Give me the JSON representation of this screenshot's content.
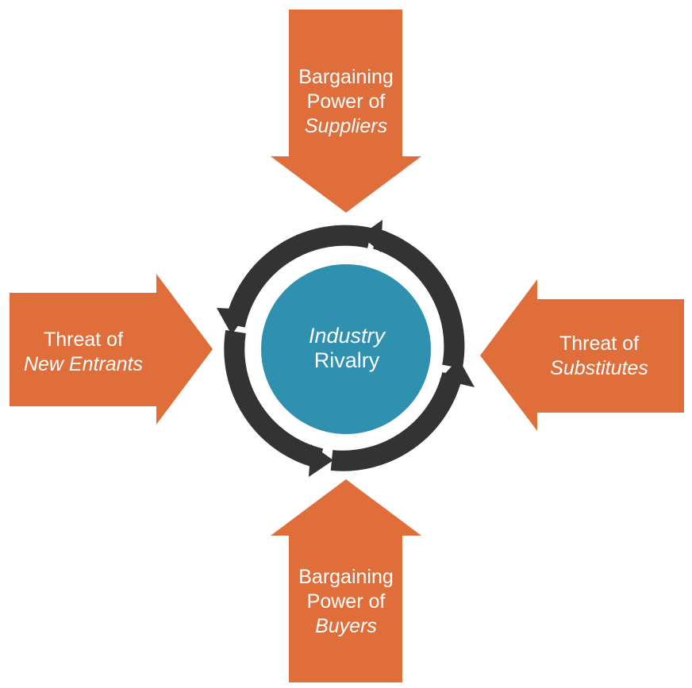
{
  "diagram": {
    "center": {
      "line1": "Industry",
      "line2": "Rivalry"
    },
    "forces": {
      "top": {
        "line1": "Bargaining",
        "line2": "Power of",
        "line3": "Suppliers"
      },
      "bottom": {
        "line1": "Bargaining",
        "line2": "Power of",
        "line3": "Buyers"
      },
      "left": {
        "line1": "Threat of",
        "line2": "New Entrants"
      },
      "right": {
        "line1": "Threat of",
        "line2": "Substitutes"
      }
    }
  },
  "colors": {
    "force_arrow": "#e06e3a",
    "center_circle": "#2f90b0",
    "cycle_ring": "#333333",
    "text": "#ffffff"
  }
}
